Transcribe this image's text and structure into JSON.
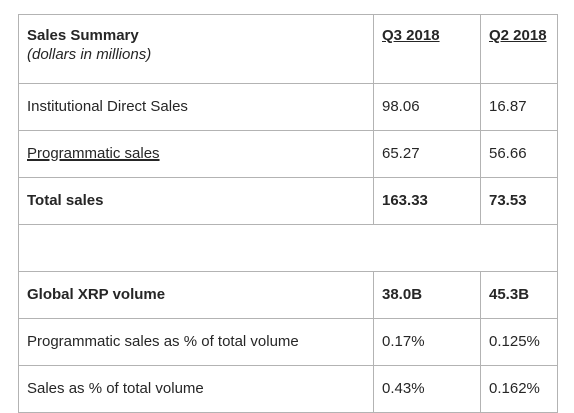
{
  "table": {
    "header": {
      "title": "Sales Summary",
      "subtitle": "(dollars in millions)",
      "col_q3": "Q3 2018",
      "col_q2": "Q2 2018"
    },
    "rows": [
      {
        "label": "Institutional Direct Sales",
        "q3": "98.06",
        "q2": "16.87"
      },
      {
        "label": "Programmatic sales",
        "q3": "65.27",
        "q2": "56.66"
      },
      {
        "label": "Total sales",
        "q3": "163.33",
        "q2": "73.53"
      },
      {
        "label": "Global XRP volume",
        "q3": "38.0B",
        "q2": "45.3B"
      },
      {
        "label": "Programmatic sales as % of total volume",
        "q3": "0.17%",
        "q2": "0.125%"
      },
      {
        "label": "Sales as % of total volume",
        "q3": "0.43%",
        "q2": "0.162%"
      }
    ]
  }
}
